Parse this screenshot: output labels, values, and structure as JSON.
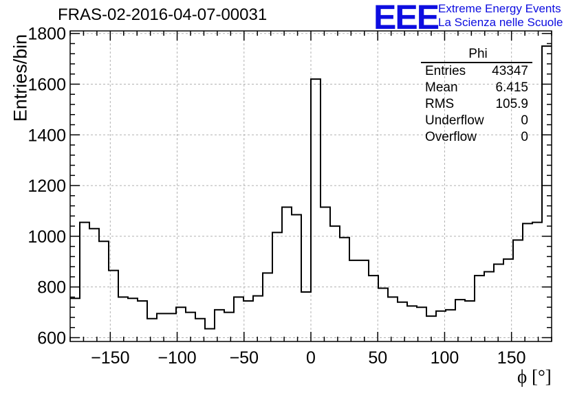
{
  "chart_data": {
    "type": "histogram",
    "title": "FRAS-02-2016-04-07-00031",
    "xlabel": "ϕ [°]",
    "ylabel": "Entries/bin",
    "xlim": [
      -180,
      180
    ],
    "ylim": [
      585,
      1810
    ],
    "x_ticks": [
      -150,
      -100,
      -50,
      0,
      50,
      100,
      150
    ],
    "y_ticks": [
      600,
      800,
      1000,
      1200,
      1400,
      1600,
      1800
    ],
    "bin_width": 7.2,
    "bin_edges_start": -180,
    "grid": true,
    "values": [
      755,
      1055,
      1030,
      980,
      865,
      760,
      755,
      745,
      675,
      695,
      695,
      720,
      700,
      675,
      635,
      710,
      700,
      760,
      745,
      765,
      855,
      1015,
      1115,
      1085,
      780,
      1620,
      1115,
      1040,
      995,
      905,
      905,
      845,
      795,
      760,
      740,
      725,
      720,
      685,
      705,
      710,
      750,
      745,
      845,
      860,
      890,
      910,
      985,
      1050,
      1055,
      1750
    ],
    "stats": {
      "name": "Phi",
      "rows": [
        {
          "label": "Entries",
          "value": "43347"
        },
        {
          "label": "Mean",
          "value": "6.415"
        },
        {
          "label": "RMS",
          "value": "105.9"
        },
        {
          "label": "Underflow",
          "value": "0"
        },
        {
          "label": "Overflow",
          "value": "0"
        }
      ]
    }
  },
  "logo": {
    "mark": "EEE",
    "line1": "Extreme Energy Events",
    "line2": "La Scienza nelle Scuole"
  }
}
